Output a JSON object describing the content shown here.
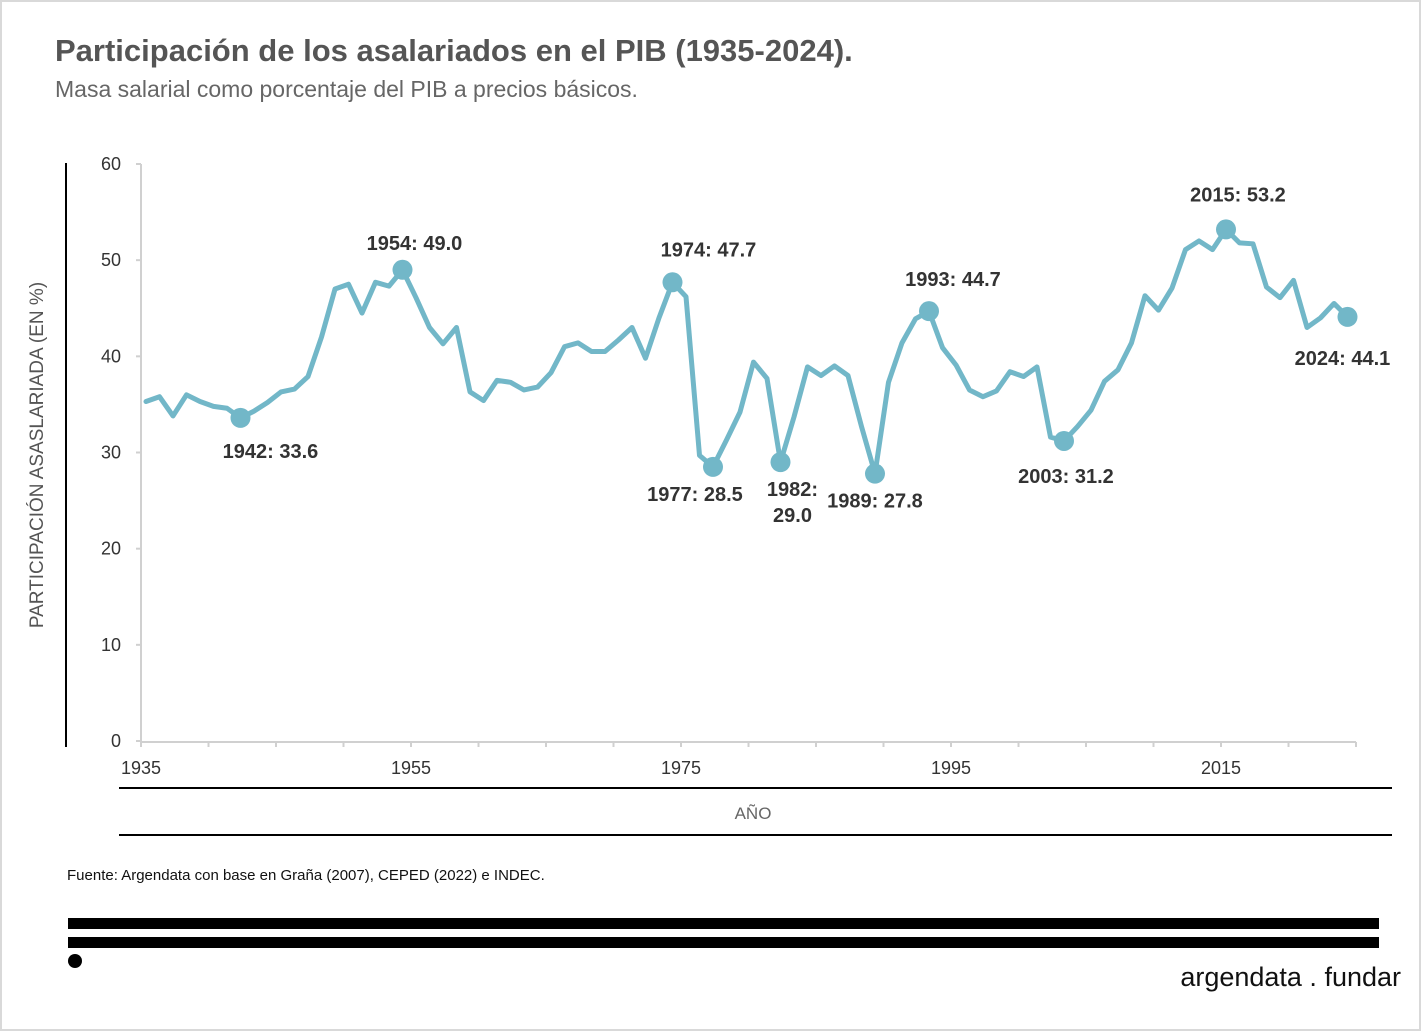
{
  "header": {
    "title": "Participación de los asalariados en el PIB (1935-2024).",
    "subtitle": "Masa salarial como porcentaje del PIB a precios básicos."
  },
  "footer": {
    "source": "Fuente: Argendata con base en Graña (2007), CEPED (2022) e INDEC.",
    "logo": "argendata . fundar"
  },
  "colors": {
    "line": "#72b7c8",
    "text": "#333333"
  },
  "chart_data": {
    "type": "line",
    "title": "Participación de los asalariados en el PIB (1935-2024).",
    "xlabel": "AÑO",
    "ylabel": "PARTICIPACIÓN ASASLARIADA  (EN %)",
    "xlim": [
      1935,
      2024
    ],
    "ylim": [
      0,
      60
    ],
    "yticks": [
      0,
      10,
      20,
      30,
      40,
      50,
      60
    ],
    "xticks": [
      1935,
      1955,
      1975,
      1995,
      2015
    ],
    "grid": false,
    "x": [
      1935,
      1936,
      1937,
      1938,
      1939,
      1940,
      1941,
      1942,
      1943,
      1944,
      1945,
      1946,
      1947,
      1948,
      1949,
      1950,
      1951,
      1952,
      1953,
      1954,
      1955,
      1956,
      1957,
      1958,
      1959,
      1960,
      1961,
      1962,
      1963,
      1964,
      1965,
      1966,
      1967,
      1968,
      1969,
      1970,
      1971,
      1972,
      1973,
      1974,
      1975,
      1976,
      1977,
      1978,
      1979,
      1980,
      1981,
      1982,
      1983,
      1984,
      1985,
      1986,
      1987,
      1988,
      1989,
      1990,
      1991,
      1992,
      1993,
      1994,
      1995,
      1996,
      1997,
      1998,
      1999,
      2000,
      2001,
      2002,
      2003,
      2004,
      2005,
      2006,
      2007,
      2008,
      2009,
      2010,
      2011,
      2012,
      2013,
      2014,
      2015,
      2016,
      2017,
      2018,
      2019,
      2020,
      2021,
      2022,
      2023,
      2024
    ],
    "series": [
      {
        "name": "Participación asalariada",
        "values": [
          35.3,
          35.8,
          33.8,
          36.0,
          35.3,
          34.8,
          34.6,
          33.6,
          34.3,
          35.2,
          36.3,
          36.6,
          37.9,
          42.0,
          47.0,
          47.5,
          44.5,
          47.7,
          47.3,
          49.0,
          46.1,
          43.0,
          41.3,
          43.0,
          36.3,
          35.4,
          37.5,
          37.3,
          36.5,
          36.8,
          38.3,
          41.0,
          41.4,
          40.5,
          40.5,
          41.7,
          43.0,
          39.8,
          44.0,
          47.7,
          46.2,
          29.7,
          28.5,
          31.3,
          34.2,
          39.4,
          37.7,
          29.0,
          33.7,
          38.9,
          38.0,
          39.0,
          38.0,
          32.7,
          27.8,
          37.3,
          41.4,
          43.9,
          44.7,
          40.9,
          39.1,
          36.5,
          35.8,
          36.4,
          38.4,
          37.9,
          38.9,
          31.6,
          31.2,
          32.7,
          34.4,
          37.4,
          38.6,
          41.4,
          46.3,
          44.8,
          47.1,
          51.1,
          52.0,
          51.1,
          53.2,
          51.8,
          51.7,
          47.2,
          46.1,
          47.9,
          43.0,
          44.0,
          45.5,
          44.1
        ]
      }
    ],
    "annotations": [
      {
        "year": 1942,
        "value": 33.6,
        "label": "1942:  33.6"
      },
      {
        "year": 1954,
        "value": 49.0,
        "label": "1954:  49.0"
      },
      {
        "year": 1974,
        "value": 47.7,
        "label": "1974:  47.7"
      },
      {
        "year": 1977,
        "value": 28.5,
        "label": "1977:  28.5"
      },
      {
        "year": 1982,
        "value": 29.0,
        "label": "1982:",
        "label2": "29.0"
      },
      {
        "year": 1989,
        "value": 27.8,
        "label": "1989:  27.8"
      },
      {
        "year": 1993,
        "value": 44.7,
        "label": "1993:  44.7"
      },
      {
        "year": 2003,
        "value": 31.2,
        "label": "2003:  31.2"
      },
      {
        "year": 2015,
        "value": 53.2,
        "label": "2015:  53.2"
      },
      {
        "year": 2024,
        "value": 44.1,
        "label": "2024: 44.1"
      }
    ]
  }
}
